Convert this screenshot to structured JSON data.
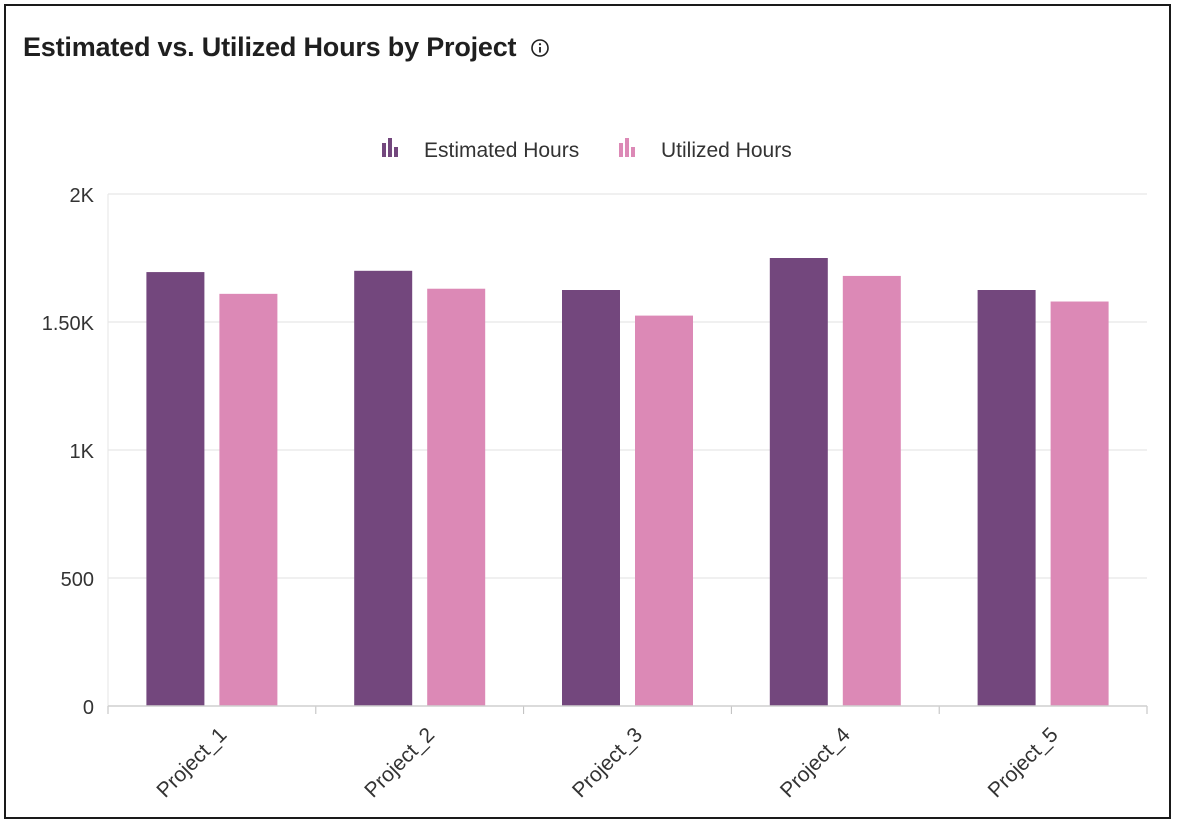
{
  "header": {
    "title": "Estimated vs. Utilized Hours by Project",
    "info_icon": "info-circle-icon"
  },
  "colors": {
    "estimated": "#73477d",
    "utilized": "#dc89b6",
    "grid": "#e2e2e2",
    "axis_text": "#333333"
  },
  "chart_data": {
    "type": "bar",
    "title": "Estimated vs. Utilized Hours by Project",
    "categories": [
      "Project_1",
      "Project_2",
      "Project_3",
      "Project_4",
      "Project_5"
    ],
    "series": [
      {
        "name": "Estimated Hours",
        "values": [
          1695,
          1700,
          1625,
          1750,
          1625
        ]
      },
      {
        "name": "Utilized Hours",
        "values": [
          1610,
          1630,
          1525,
          1680,
          1580
        ]
      }
    ],
    "ylim": [
      0,
      2000
    ],
    "yticks": [
      0,
      500,
      1000,
      1500,
      2000
    ],
    "ytick_labels": [
      "0",
      "500",
      "1K",
      "1.50K",
      "2K"
    ],
    "grid": true,
    "legend_position": "top-center",
    "xlabel": "",
    "ylabel": ""
  }
}
